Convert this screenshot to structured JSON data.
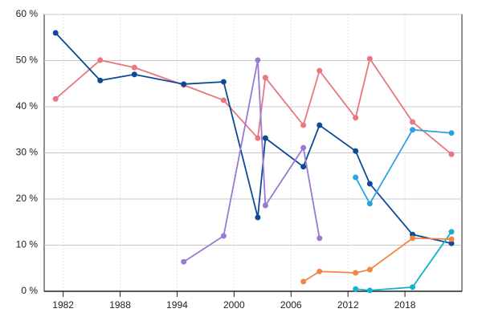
{
  "chart_data": {
    "type": "line",
    "xlim": [
      1980,
      2024
    ],
    "xticks": [
      1982,
      1988,
      1994,
      2000,
      2006,
      2012,
      2018
    ],
    "ylim": [
      0,
      60
    ],
    "yticks": [
      {
        "value": 0,
        "label": "0 %"
      },
      {
        "value": 10,
        "label": "10 %"
      },
      {
        "value": 20,
        "label": "20 %"
      },
      {
        "value": 30,
        "label": "30 %"
      },
      {
        "value": 40,
        "label": "40 %"
      },
      {
        "value": 50,
        "label": "50 %"
      },
      {
        "value": 60,
        "label": "60 %"
      }
    ],
    "grid": true,
    "series": [
      {
        "color": "#e8777f",
        "x": [
          1981.2,
          1985.9,
          1989.5,
          1994.7,
          1998.9,
          2002.5,
          2003.3,
          2007.3,
          2009.0,
          2012.8,
          2014.3,
          2018.8,
          2022.9
        ],
        "values": [
          41.7,
          50.1,
          48.5,
          44.7,
          41.4,
          33.2,
          46.3,
          36.0,
          47.8,
          37.6,
          50.4,
          36.7,
          29.7
        ]
      },
      {
        "color": "#0d4a96",
        "x": [
          1981.2,
          1985.9,
          1989.5,
          1994.7,
          1998.9,
          2002.5,
          2003.3,
          2007.3,
          2009.0,
          2012.8,
          2014.3,
          2018.8,
          2022.9
        ],
        "values": [
          56.0,
          45.7,
          47.0,
          44.9,
          45.4,
          16.0,
          33.2,
          27.0,
          36.0,
          30.4,
          23.3,
          12.3,
          10.4
        ]
      },
      {
        "color": "#9a78d6",
        "x": [
          1994.7,
          1998.9,
          2002.5,
          2003.3,
          2007.3,
          2009.0
        ],
        "values": [
          6.4,
          12.0,
          50.1,
          18.6,
          31.1,
          11.5
        ]
      },
      {
        "color": "#2ca3e0",
        "x": [
          2012.8,
          2014.3,
          2018.8,
          2022.9
        ],
        "values": [
          24.7,
          19.0,
          35.0,
          34.3
        ]
      },
      {
        "color": "#1ab0cf",
        "x": [
          2012.8,
          2014.3,
          2018.8,
          2022.9
        ],
        "values": [
          0.5,
          0.2,
          0.9,
          12.9
        ]
      },
      {
        "color": "#f28444",
        "x": [
          2007.3,
          2009.0,
          2012.8,
          2014.3,
          2018.8,
          2022.9
        ],
        "values": [
          2.1,
          4.3,
          4.0,
          4.7,
          11.5,
          11.3
        ]
      }
    ]
  }
}
